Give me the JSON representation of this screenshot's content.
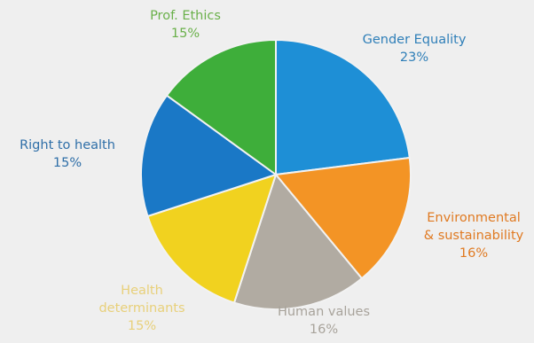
{
  "chart_data": {
    "type": "pie",
    "title": "",
    "slices": [
      {
        "label_lines": [
          "Gender Equality"
        ],
        "label": "Gender Equality",
        "value": 23,
        "value_text": "23%",
        "color": "#1e8fd6",
        "label_color": "#2f7fb8"
      },
      {
        "label_lines": [
          "Environmental",
          "& sustainability"
        ],
        "label": "Environmental & sustainability",
        "value": 16,
        "value_text": "16%",
        "color": "#f39425",
        "label_color": "#e07a22"
      },
      {
        "label_lines": [
          "Human values"
        ],
        "label": "Human values",
        "value": 16,
        "value_text": "16%",
        "color": "#b1aba2",
        "label_color": "#a8a39b"
      },
      {
        "label_lines": [
          "Health",
          "determinants"
        ],
        "label": "Health determinants",
        "value": 15,
        "value_text": "15%",
        "color": "#f1d21f",
        "label_color": "#e8d07a"
      },
      {
        "label_lines": [
          "Right to health"
        ],
        "label": "Right to health",
        "value": 15,
        "value_text": "15%",
        "color": "#1a78c6",
        "label_color": "#2f6fa8"
      },
      {
        "label_lines": [
          "Prof. Ethics"
        ],
        "label": "Prof. Ethics",
        "value": 15,
        "value_text": "15%",
        "color": "#3eae3a",
        "label_color": "#6ab04a"
      }
    ]
  }
}
